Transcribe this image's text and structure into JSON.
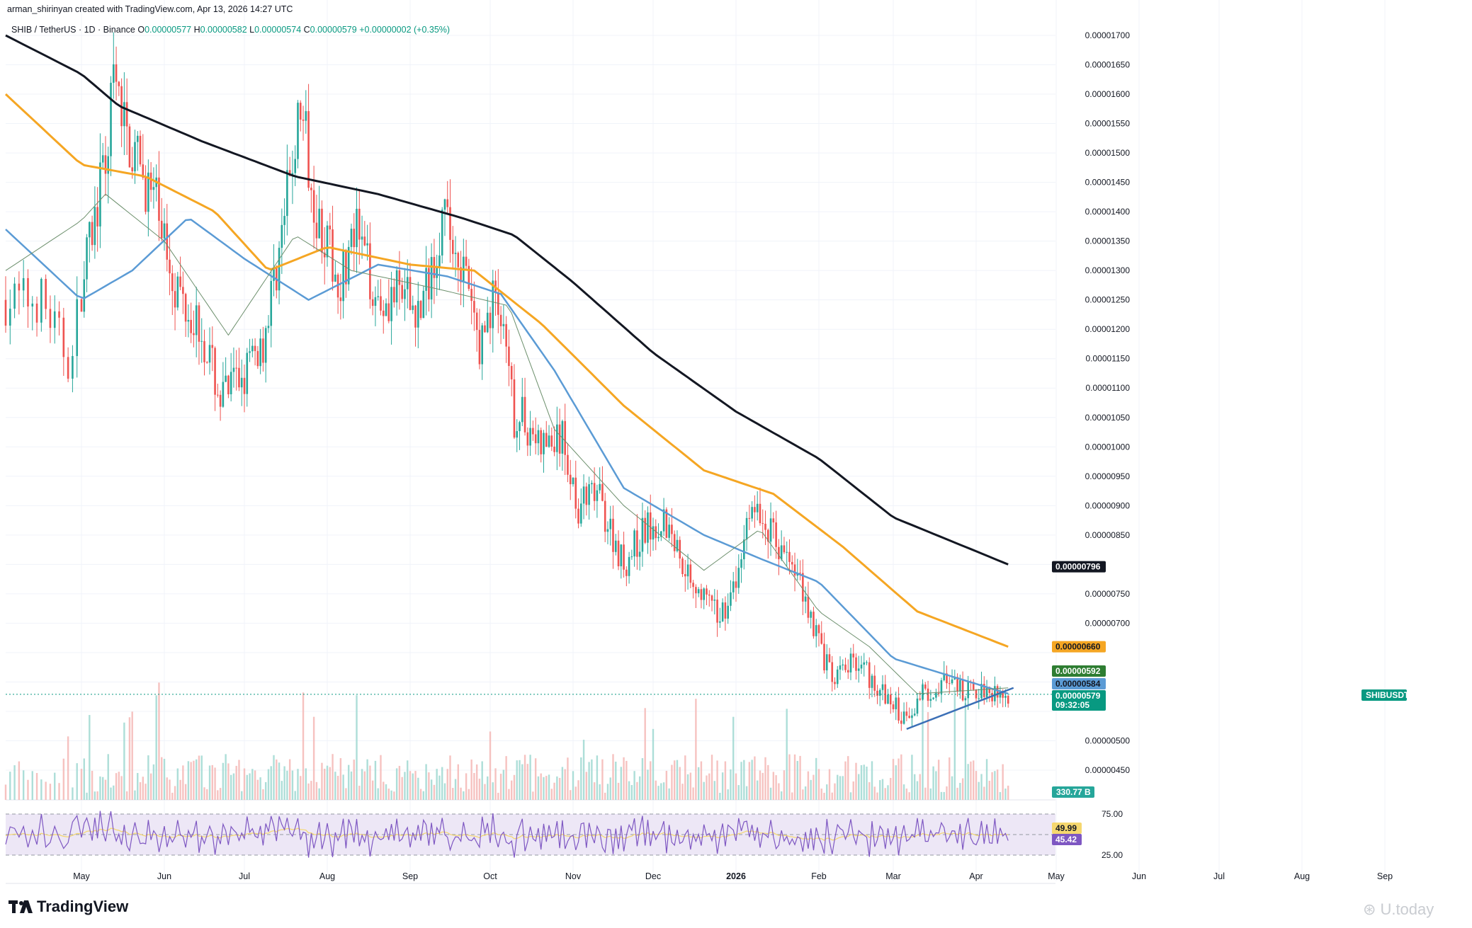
{
  "header": {
    "credit": "arman_shirinyan created with TradingView.com, Apr 13, 2026 14:27 UTC",
    "symbol": "SHIB / TetherUS · 1D · Binance",
    "o_label": "O",
    "o": "0.00000577",
    "h_label": "H",
    "h": "0.00000582",
    "l_label": "L",
    "l": "0.00000574",
    "c_label": "C",
    "c": "0.00000579",
    "change": "+0.00000002 (+0.35%)"
  },
  "branding": {
    "logo": "TradingView",
    "watermark": "U.today"
  },
  "colors": {
    "up": "#26a69a",
    "down": "#ef5350",
    "ma_black": "#131722",
    "ma_orange": "#f5a623",
    "ma_blue": "#5b9bd5",
    "ma_green": "#6c8f6c",
    "trendline": "#3b6fb6",
    "rsi": "#7e57c2",
    "rsi_ma": "#f5d76e",
    "rsi_band": "#ede7f6"
  },
  "chart_data": [
    {
      "type": "candlestick",
      "title": "SHIB / TetherUS · 1D · Binance",
      "x_axis_labels": [
        "May",
        "Jun",
        "Jul",
        "Aug",
        "Sep",
        "Oct",
        "Nov",
        "Dec",
        "2026",
        "Feb",
        "Mar",
        "Apr",
        "May",
        "Jun",
        "Jul",
        "Aug",
        "Sep"
      ],
      "y_axis_labels": [
        "0.00001700",
        "0.00001650",
        "0.00001600",
        "0.00001550",
        "0.00001500",
        "0.00001450",
        "0.00001400",
        "0.00001350",
        "0.00001300",
        "0.00001250",
        "0.00001200",
        "0.00001150",
        "0.00001100",
        "0.00001050",
        "0.00001000",
        "0.00000950",
        "0.00000900",
        "0.00000850",
        "0.00000750",
        "0.00000700",
        "0.00000500",
        "0.00000450"
      ],
      "ylim": [
        4.2e-06,
        1.74e-05
      ],
      "close_path": [
        [
          "2025-04-22",
          1.25e-05
        ],
        [
          "2025-04-28",
          1.15e-05
        ],
        [
          "2025-05-03",
          1.32e-05
        ],
        [
          "2025-05-10",
          1.48e-05
        ],
        [
          "2025-05-13",
          1.62e-05
        ],
        [
          "2025-05-20",
          1.5e-05
        ],
        [
          "2025-05-30",
          1.4e-05
        ],
        [
          "2025-06-05",
          1.28e-05
        ],
        [
          "2025-06-15",
          1.2e-05
        ],
        [
          "2025-06-22",
          1.08e-05
        ],
        [
          "2025-06-30",
          1.12e-05
        ],
        [
          "2025-07-08",
          1.18e-05
        ],
        [
          "2025-07-15",
          1.36e-05
        ],
        [
          "2025-07-22",
          1.58e-05
        ],
        [
          "2025-07-28",
          1.4e-05
        ],
        [
          "2025-08-05",
          1.28e-05
        ],
        [
          "2025-08-12",
          1.36e-05
        ],
        [
          "2025-08-20",
          1.25e-05
        ],
        [
          "2025-08-28",
          1.26e-05
        ],
        [
          "2025-09-05",
          1.23e-05
        ],
        [
          "2025-09-13",
          1.39e-05
        ],
        [
          "2025-09-20",
          1.32e-05
        ],
        [
          "2025-09-27",
          1.17e-05
        ],
        [
          "2025-10-03",
          1.27e-05
        ],
        [
          "2025-10-10",
          1.05e-05
        ],
        [
          "2025-10-13",
          1.05e-05
        ],
        [
          "2025-10-20",
          1e-05
        ],
        [
          "2025-10-28",
          1.01e-05
        ],
        [
          "2025-11-03",
          9e-06
        ],
        [
          "2025-11-10",
          9.2e-06
        ],
        [
          "2025-11-20",
          8e-06
        ],
        [
          "2025-11-28",
          8.6e-06
        ],
        [
          "2025-12-05",
          8.8e-06
        ],
        [
          "2025-12-15",
          7.8e-06
        ],
        [
          "2025-12-25",
          7.1e-06
        ],
        [
          "2026-01-01",
          7.6e-06
        ],
        [
          "2026-01-06",
          9e-06
        ],
        [
          "2026-01-15",
          8.5e-06
        ],
        [
          "2026-01-25",
          7.7e-06
        ],
        [
          "2026-02-01",
          6.7e-06
        ],
        [
          "2026-02-06",
          6e-06
        ],
        [
          "2026-02-15",
          6.4e-06
        ],
        [
          "2026-02-25",
          5.8e-06
        ],
        [
          "2026-03-05",
          5.4e-06
        ],
        [
          "2026-03-12",
          5.8e-06
        ],
        [
          "2026-03-20",
          6e-06
        ],
        [
          "2026-03-28",
          5.8e-06
        ],
        [
          "2026-04-05",
          5.9e-06
        ],
        [
          "2026-04-13",
          5.8e-06
        ]
      ],
      "moving_averages": [
        {
          "name": "",
          "color": "#131722",
          "current": 7.96e-06,
          "points": [
            [
              "2025-04-14",
              1.7e-05
            ],
            [
              "2025-05-15",
              1.58e-05
            ],
            [
              "2025-06-15",
              1.52e-05
            ],
            [
              "2025-07-20",
              1.46e-05
            ],
            [
              "2025-08-20",
              1.43e-05
            ],
            [
              "2025-09-20",
              1.39e-05
            ],
            [
              "2025-10-10",
              1.36e-05
            ],
            [
              "2025-11-01",
              1.28e-05
            ],
            [
              "2025-12-01",
              1.16e-05
            ],
            [
              "2026-01-01",
              1.06e-05
            ],
            [
              "2026-02-01",
              9.8e-06
            ],
            [
              "2026-03-01",
              8.8e-06
            ],
            [
              "2026-04-13",
              8e-06
            ]
          ]
        },
        {
          "name": "",
          "color": "#f5a623",
          "current": 6.6e-06,
          "points": [
            [
              "2025-04-14",
              1.6e-05
            ],
            [
              "2025-05-01",
              1.48e-05
            ],
            [
              "2025-05-25",
              1.46e-05
            ],
            [
              "2025-06-20",
              1.4e-05
            ],
            [
              "2025-07-10",
              1.3e-05
            ],
            [
              "2025-08-01",
              1.34e-05
            ],
            [
              "2025-09-01",
              1.31e-05
            ],
            [
              "2025-09-25",
              1.3e-05
            ],
            [
              "2025-10-20",
              1.21e-05
            ],
            [
              "2025-11-20",
              1.07e-05
            ],
            [
              "2025-12-20",
              9.6e-06
            ],
            [
              "2026-01-15",
              9.2e-06
            ],
            [
              "2026-02-10",
              8.3e-06
            ],
            [
              "2026-03-10",
              7.2e-06
            ],
            [
              "2026-04-13",
              6.6e-06
            ]
          ]
        },
        {
          "name": "",
          "color": "#5b9bd5",
          "current": 5.84e-06,
          "points": [
            [
              "2025-04-14",
              1.37e-05
            ],
            [
              "2025-05-01",
              1.25e-05
            ],
            [
              "2025-05-20",
              1.3e-05
            ],
            [
              "2025-06-10",
              1.39e-05
            ],
            [
              "2025-07-01",
              1.32e-05
            ],
            [
              "2025-07-25",
              1.25e-05
            ],
            [
              "2025-08-20",
              1.31e-05
            ],
            [
              "2025-09-15",
              1.29e-05
            ],
            [
              "2025-10-05",
              1.26e-05
            ],
            [
              "2025-10-25",
              1.13e-05
            ],
            [
              "2025-11-20",
              9.3e-06
            ],
            [
              "2025-12-20",
              8.5e-06
            ],
            [
              "2026-01-10",
              8.1e-06
            ],
            [
              "2026-02-01",
              7.7e-06
            ],
            [
              "2026-03-01",
              6.4e-06
            ],
            [
              "2026-04-13",
              5.8e-06
            ]
          ]
        },
        {
          "name": "",
          "color": "#6c8f6c",
          "current": 5.92e-06,
          "points": [
            [
              "2025-04-14",
              1.3e-05
            ],
            [
              "2025-05-10",
              1.43e-05
            ],
            [
              "2025-06-01",
              1.35e-05
            ],
            [
              "2025-06-25",
              1.19e-05
            ],
            [
              "2025-07-20",
              1.36e-05
            ],
            [
              "2025-08-10",
              1.3e-05
            ],
            [
              "2025-09-10",
              1.27e-05
            ],
            [
              "2025-10-08",
              1.24e-05
            ],
            [
              "2025-10-25",
              1.03e-05
            ],
            [
              "2025-11-20",
              9e-06
            ],
            [
              "2025-12-20",
              7.9e-06
            ],
            [
              "2026-01-10",
              8.6e-06
            ],
            [
              "2026-02-01",
              7.2e-06
            ],
            [
              "2026-02-20",
              6.6e-06
            ],
            [
              "2026-03-10",
              5.8e-06
            ],
            [
              "2026-04-13",
              5.9e-06
            ]
          ]
        }
      ],
      "trendline": [
        [
          "2026-03-06",
          5.2e-06
        ],
        [
          "2026-04-15",
          5.9e-06
        ]
      ],
      "price_labels": [
        {
          "value": "0.00000796",
          "bg": "#131722",
          "fg": "#ffffff"
        },
        {
          "value": "0.00000660",
          "bg": "#f5a623",
          "fg": "#131722"
        },
        {
          "value": "0.00000592",
          "bg": "#2e7d32",
          "fg": "#ffffff"
        },
        {
          "value": "0.00000584",
          "bg": "#5b9bd5",
          "fg": "#131722"
        },
        {
          "value": "0.00000579",
          "bg": "#089981",
          "fg": "#ffffff"
        },
        {
          "value": "09:32:05",
          "bg": "#089981",
          "fg": "#ffffff"
        }
      ],
      "symbol_tag": "SHIBUSDT",
      "volume_label": "330.77 B",
      "grid": true
    },
    {
      "type": "line",
      "title": "",
      "y_axis_labels": [
        "75.00",
        "25.00"
      ],
      "levels": [
        75,
        50,
        25
      ],
      "value_labels": [
        {
          "value": "49.99",
          "bg": "#f5d76e",
          "fg": "#131722"
        },
        {
          "value": "45.42",
          "bg": "#7e57c2",
          "fg": "#ffffff"
        }
      ]
    }
  ]
}
